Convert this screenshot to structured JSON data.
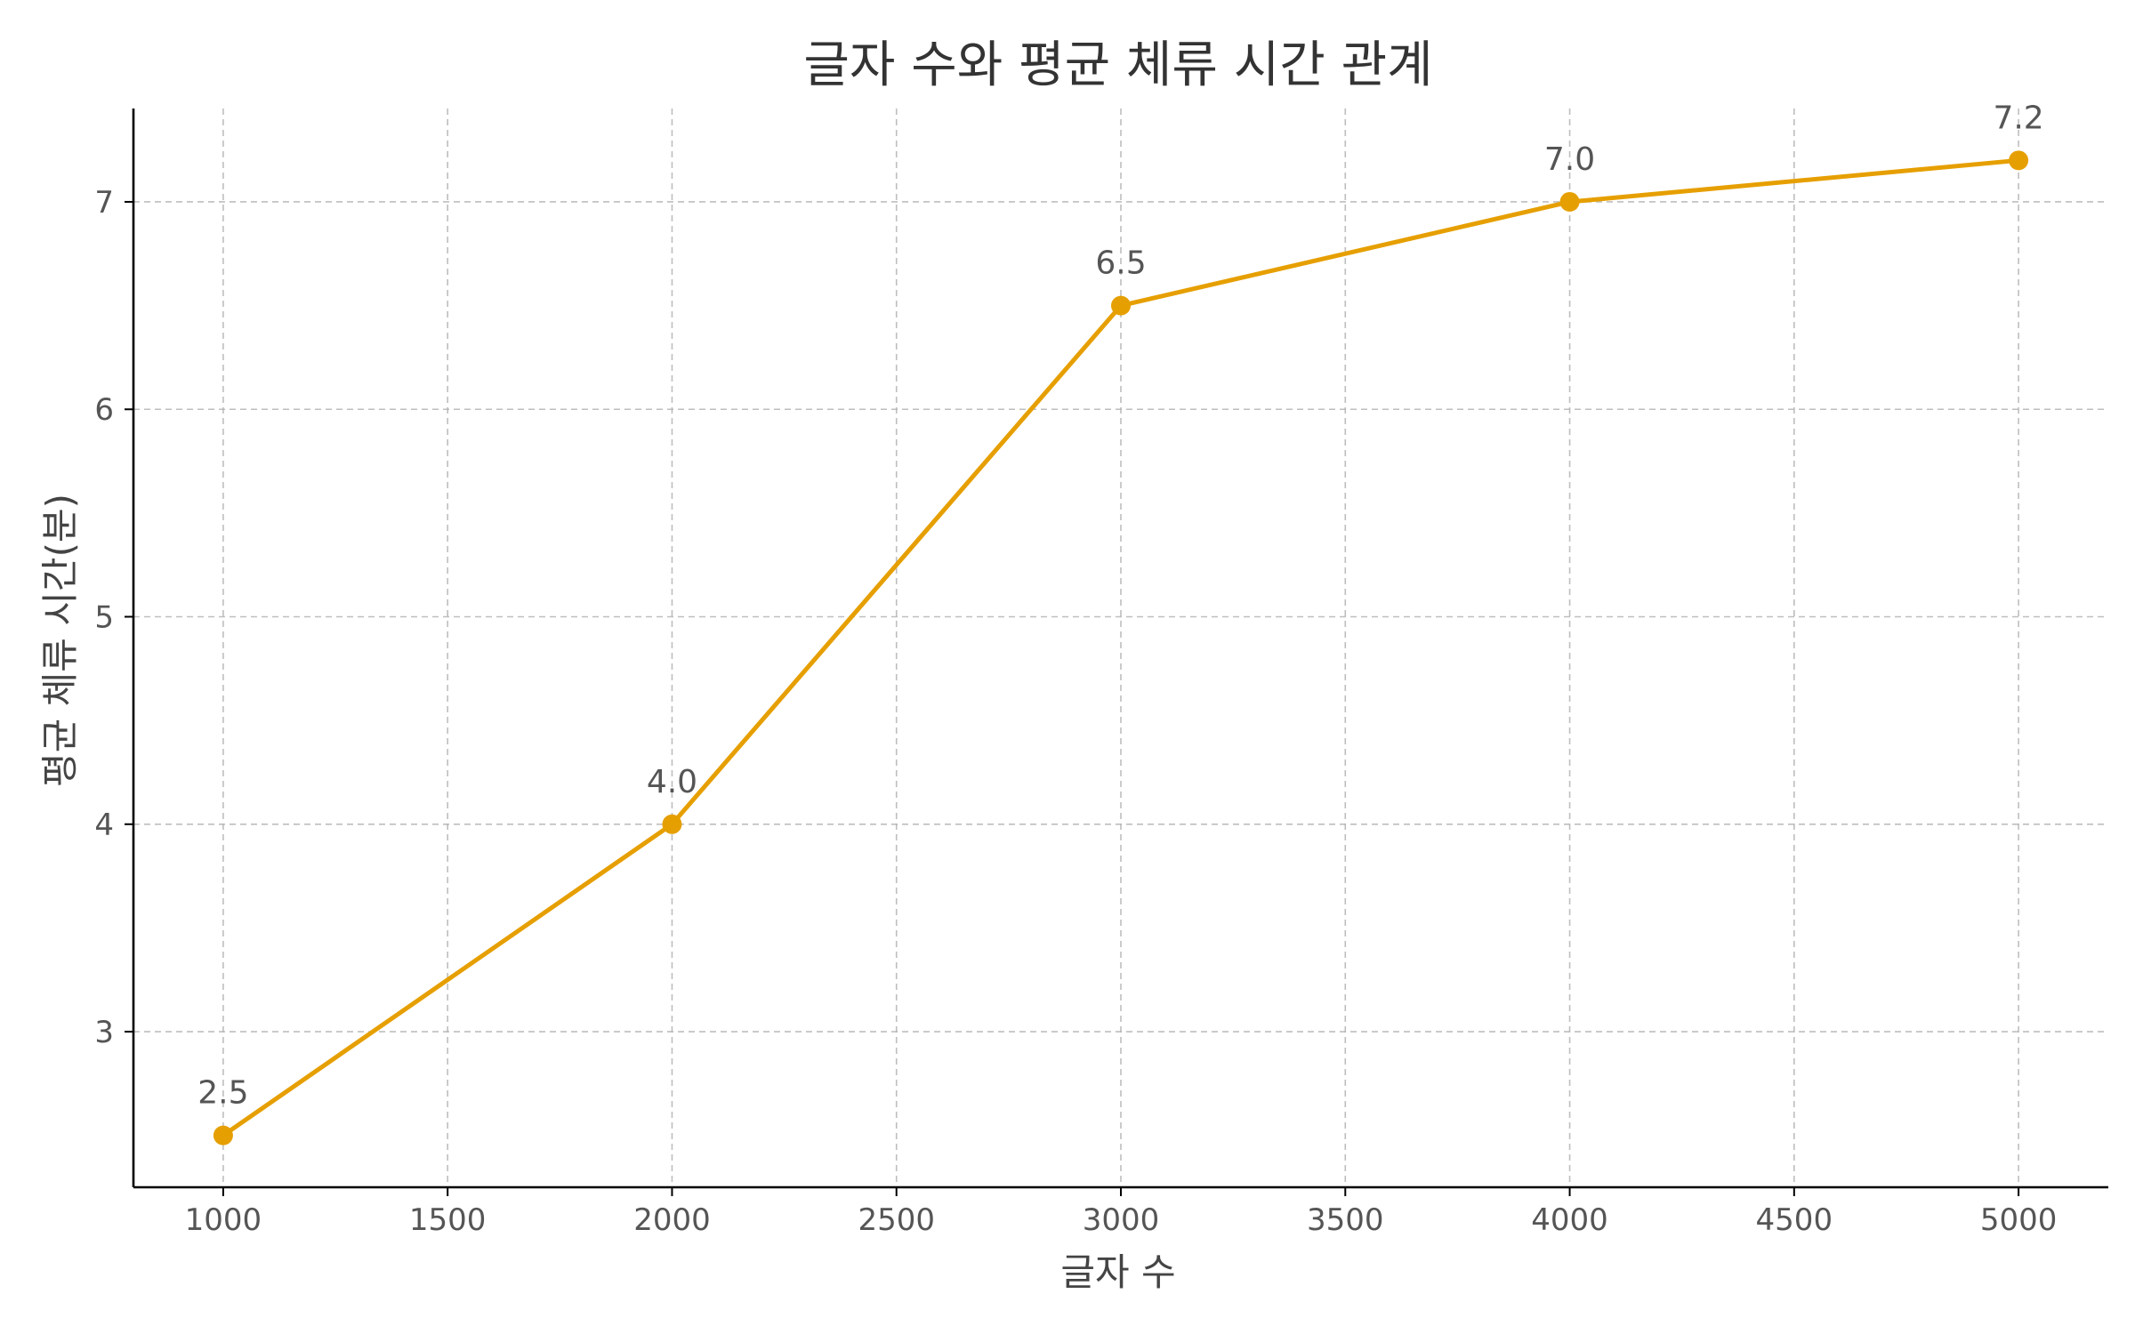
{
  "chart_data": {
    "type": "line",
    "title": "글자 수와 평균 체류 시간 관계",
    "xlabel": "글자 수",
    "ylabel": "평균 체류 시간(분)",
    "x": [
      1000,
      2000,
      3000,
      4000,
      5000
    ],
    "series": [
      {
        "values": [
          2.5,
          4.0,
          6.5,
          7.0,
          7.2
        ],
        "data_labels": [
          "2.5",
          "4.0",
          "6.5",
          "7.0",
          "7.2"
        ],
        "color": "#E69F00"
      }
    ],
    "xlim": [
      800,
      5200
    ],
    "ylim": [
      2.25,
      7.45
    ],
    "x_ticks": [
      1000,
      1500,
      2000,
      2500,
      3000,
      3500,
      4000,
      4500,
      5000
    ],
    "x_tick_labels": [
      "1000",
      "1500",
      "2000",
      "2500",
      "3000",
      "3500",
      "4000",
      "4500",
      "5000"
    ],
    "y_ticks": [
      3,
      4,
      5,
      6,
      7
    ],
    "y_tick_labels": [
      "3",
      "4",
      "5",
      "6",
      "7"
    ],
    "grid": true,
    "legend": "none",
    "colors": {
      "line": "#E69F00",
      "grid": "#b3b3b3",
      "axis": "#000000",
      "text": "#555555"
    }
  }
}
